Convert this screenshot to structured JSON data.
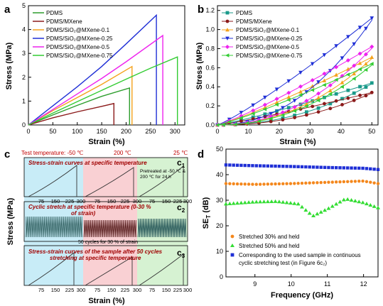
{
  "figure": {
    "panels": [
      {
        "id": "a",
        "letter": "a",
        "xlabel": "Strain (%)",
        "ylabel": "Stress (MPa)",
        "xlim": [
          0,
          320
        ],
        "ylim": [
          0,
          5
        ],
        "xticks": [
          0,
          50,
          100,
          150,
          200,
          250,
          300
        ],
        "yticks": [
          0,
          1,
          2,
          3,
          4,
          5
        ],
        "legend": [
          "PDMS",
          "PDMS/MXene",
          "PDMS/SiO₂@MXene-0.1",
          "PDMS/SiO₂@MXene-0.25",
          "PDMS/SiO₂@MXene-0.5",
          "PDMS/SiO₂@MXene-0.75"
        ]
      },
      {
        "id": "b",
        "letter": "b",
        "xlabel": "Strain (%)",
        "ylabel": "Stress (MPa)",
        "xlim": [
          0,
          52
        ],
        "ylim": [
          0,
          1.25
        ],
        "xticks": [
          0,
          10,
          20,
          30,
          40,
          50
        ],
        "yticks": [
          0.0,
          0.2,
          0.4,
          0.6,
          0.8,
          1.0,
          1.2
        ],
        "legend": [
          "PDMS",
          "PDMS/MXene",
          "PDMS/SiO₂@MXene-0.1",
          "PDMS/SiO₂@MXene-0.25",
          "PDMS/SiO₂@MXene-0.5",
          "PDMS/SiO₂@MXene-0.75"
        ]
      },
      {
        "id": "c",
        "letter": "c",
        "xlabel": "Strain (%)",
        "ylabel": "Stress (MPa)",
        "temps": [
          "Test temperature: -50 ℃",
          "200 ℃",
          "25 ℃"
        ],
        "c1_title": "Stress-strain curves at specific temperature",
        "c1_label": "c",
        "c1_sub": "1",
        "pretreat_1": "Pretreated at -50 ℃ &",
        "pretreat_2": "200 ℃ for 24 h",
        "c2_title_1": "Cyclic stretch at specific temperature (0-30 %",
        "c2_title_2": "of strain)",
        "c2_label": "c",
        "c2_sub": "2",
        "c2_note": "50 cycles for 30 % of strain",
        "c3_title_1": "Stress-strain curves of the sample after 50 cycles",
        "c3_title_2": "stretching at specific temperature",
        "c3_label": "c",
        "c3_sub": "3",
        "xticks_labels": [
          "75",
          "150",
          "225",
          "300",
          "75",
          "150",
          "225",
          "300",
          "75",
          "150",
          "225",
          "300"
        ]
      },
      {
        "id": "d",
        "letter": "d",
        "xlabel": "Frequency (GHz)",
        "ylabel": "SE",
        "ylabel_sub": "T",
        "ylabel_unit": " (dB)",
        "xlim": [
          8.2,
          12.4
        ],
        "ylim": [
          0,
          50
        ],
        "xticks": [
          9,
          10,
          11,
          12
        ],
        "yticks": [
          0,
          10,
          20,
          30,
          40,
          50
        ],
        "legend": [
          "Stretched 30% and held",
          "Stretched 50% and held",
          "Corresponding to the used sample in continuous",
          "cyclic stretching test (in Figure 6c₂)"
        ]
      }
    ]
  },
  "chart_data": [
    {
      "type": "line",
      "panel": "a",
      "xlabel": "Strain (%)",
      "ylabel": "Stress (MPa)",
      "xlim": [
        0,
        320
      ],
      "ylim": [
        0,
        5
      ],
      "legend_position": "top-left",
      "colors": [
        "#2e9e2e",
        "#8b1a1a",
        "#f4a21c",
        "#1f2fd6",
        "#ee22ee",
        "#33cc33"
      ],
      "series": [
        {
          "name": "PDMS",
          "x": [
            0,
            50,
            100,
            150,
            207,
            207
          ],
          "y": [
            0,
            0.42,
            0.82,
            1.2,
            1.55,
            0
          ]
        },
        {
          "name": "PDMS/MXene",
          "x": [
            0,
            50,
            100,
            150,
            175,
            175
          ],
          "y": [
            0,
            0.3,
            0.55,
            0.78,
            0.9,
            0
          ]
        },
        {
          "name": "PDMS/SiO₂@MXene-0.1",
          "x": [
            0,
            50,
            100,
            150,
            212,
            212
          ],
          "y": [
            0,
            0.6,
            1.15,
            1.7,
            2.45,
            0
          ]
        },
        {
          "name": "PDMS/SiO₂@MXene-0.25",
          "x": [
            0,
            50,
            100,
            150,
            200,
            262,
            262
          ],
          "y": [
            0,
            0.8,
            1.6,
            2.45,
            3.4,
            4.6,
            0
          ]
        },
        {
          "name": "PDMS/SiO₂@MXene-0.5",
          "x": [
            0,
            50,
            100,
            150,
            200,
            275,
            275
          ],
          "y": [
            0,
            0.65,
            1.3,
            1.95,
            2.65,
            3.75,
            0
          ]
        },
        {
          "name": "PDMS/SiO₂@MXene-0.75",
          "x": [
            0,
            50,
            100,
            150,
            200,
            250,
            305,
            305
          ],
          "y": [
            0,
            0.5,
            0.98,
            1.45,
            1.92,
            2.38,
            2.85,
            0
          ]
        }
      ]
    },
    {
      "type": "line",
      "panel": "b",
      "xlabel": "Strain (%)",
      "ylabel": "Stress (MPa)",
      "xlim": [
        0,
        52
      ],
      "ylim": [
        0,
        1.25
      ],
      "legend_position": "top-left",
      "series": [
        {
          "name": "PDMS",
          "loading_max": 0.44,
          "unloading_mid": 0.23
        },
        {
          "name": "PDMS/MXene",
          "loading_max": 0.34,
          "unloading_mid": 0.18
        },
        {
          "name": "PDMS/SiO₂@MXene-0.1",
          "loading_max": 0.71,
          "unloading_mid": 0.36
        },
        {
          "name": "PDMS/SiO₂@MXene-0.25",
          "loading_max": 1.12,
          "unloading_mid": 0.48
        },
        {
          "name": "PDMS/SiO₂@MXene-0.5",
          "loading_max": 0.82,
          "unloading_mid": 0.41
        },
        {
          "name": "PDMS/SiO₂@MXene-0.75",
          "loading_max": 0.64,
          "unloading_mid": 0.33
        }
      ],
      "x_max": 50
    },
    {
      "type": "line",
      "panel": "c",
      "xlabel": "Strain (%)",
      "ylabel": "Stress (MPa)",
      "regions": [
        "-50 ℃",
        "200 ℃",
        "25 ℃"
      ],
      "cycles": 50,
      "cycle_strain_percent": 30
    },
    {
      "type": "line",
      "panel": "d",
      "xlabel": "Frequency (GHz)",
      "ylabel": "SE_T (dB)",
      "xlim": [
        8.2,
        12.4
      ],
      "ylim": [
        0,
        50
      ],
      "legend_position": "bottom",
      "series": [
        {
          "name": "Stretched 30% and held",
          "x": [
            8.2,
            9,
            10,
            11,
            12,
            12.4
          ],
          "y": [
            36.5,
            36.2,
            36.5,
            37.0,
            37.5,
            36.5
          ]
        },
        {
          "name": "Stretched 50% and held",
          "x": [
            8.2,
            9,
            9.6,
            10.2,
            10.6,
            11.0,
            11.5,
            12.0,
            12.4
          ],
          "y": [
            28.5,
            29.3,
            29.5,
            28.5,
            23.8,
            26.5,
            30.5,
            29.0,
            27.0
          ]
        },
        {
          "name": "Corresponding to the used sample in continuous cyclic stretching test (in Figure 6c₂)",
          "x": [
            8.2,
            9,
            10,
            11,
            12,
            12.4
          ],
          "y": [
            43.8,
            43.5,
            43.2,
            42.8,
            42.5,
            42.0
          ]
        }
      ]
    }
  ]
}
